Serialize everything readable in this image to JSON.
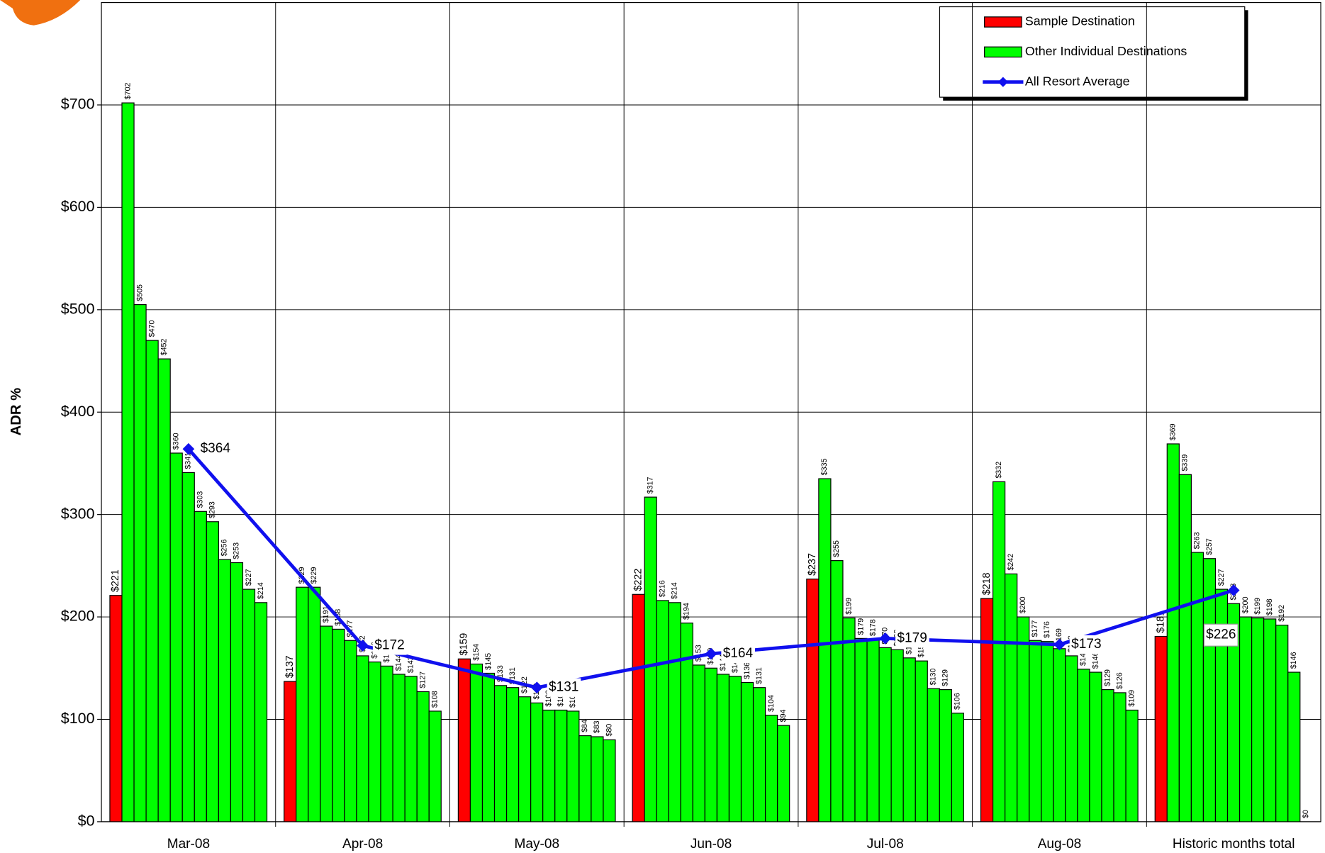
{
  "chart_data": {
    "type": "grouped-bar-line",
    "y_label": "ADR %",
    "categories": [
      "Mar-08",
      "Apr-08",
      "May-08",
      "Jun-08",
      "Jul-08",
      "Aug-08",
      "Historic months total"
    ],
    "ylim": [
      0,
      800
    ],
    "yticks": [
      {
        "value": 0,
        "label": "$0"
      },
      {
        "value": 100,
        "label": "$100"
      },
      {
        "value": 200,
        "label": "$200"
      },
      {
        "value": 300,
        "label": "$300"
      },
      {
        "value": 400,
        "label": "$400"
      },
      {
        "value": 500,
        "label": "$500"
      },
      {
        "value": 600,
        "label": "$600"
      },
      {
        "value": 700,
        "label": "$700"
      }
    ],
    "grid": true,
    "legend": "top-right",
    "series": [
      {
        "name": "Sample Destination",
        "color": "#ff0000",
        "values": [
          221,
          137,
          159,
          222,
          237,
          218,
          181
        ],
        "value_labels": [
          "$221",
          "$137",
          "$159",
          "$222",
          "$237",
          "$218",
          "$181"
        ]
      },
      {
        "name": "Other Individual Destinations",
        "color": "#00ff00",
        "values": [
          [
            702,
            505,
            470,
            452,
            360,
            341,
            303,
            293,
            256,
            253,
            227,
            214
          ],
          [
            229,
            229,
            191,
            188,
            177,
            162,
            156,
            152,
            144,
            142,
            127,
            108
          ],
          [
            154,
            145,
            133,
            131,
            122,
            116,
            109,
            109,
            108,
            84,
            83,
            80
          ],
          [
            317,
            216,
            214,
            194,
            153,
            150,
            144,
            142,
            136,
            131,
            104,
            94
          ],
          [
            335,
            255,
            199,
            179,
            178,
            170,
            168,
            160,
            157,
            130,
            129,
            106
          ],
          [
            332,
            242,
            200,
            177,
            176,
            169,
            162,
            149,
            146,
            129,
            126,
            109
          ],
          [
            369,
            339,
            263,
            257,
            227,
            213,
            200,
            199,
            198,
            192,
            146,
            0
          ]
        ],
        "value_labels": [
          [
            "$702",
            "$505",
            "$470",
            "$452",
            "$360",
            "$341",
            "$303",
            "$293",
            "$256",
            "$253",
            "$227",
            "$214"
          ],
          [
            "$229",
            "$229",
            "$191",
            "$188",
            "$177",
            "$162",
            "$156",
            "$152",
            "$144",
            "$142",
            "$127",
            "$108"
          ],
          [
            "$154",
            "$145",
            "$133",
            "$131",
            "$122",
            "$116",
            "$109",
            "$109",
            "$108",
            "$84",
            "$83",
            "$80"
          ],
          [
            "$317",
            "$216",
            "$214",
            "$194",
            "$153",
            "$150",
            "$144",
            "$142",
            "$136",
            "$131",
            "$104",
            "$94"
          ],
          [
            "$335",
            "$255",
            "$199",
            "$179",
            "$178",
            "$170",
            "$168",
            "$160",
            "$157",
            "$130",
            "$129",
            "$106"
          ],
          [
            "$332",
            "$242",
            "$200",
            "$177",
            "$176",
            "$169",
            "$162",
            "$149",
            "$146",
            "$129",
            "$126",
            "$109"
          ],
          [
            "$369",
            "$339",
            "$263",
            "$257",
            "$227",
            "$213",
            "$200",
            "$199",
            "$198",
            "$192",
            "$146",
            "$0"
          ]
        ]
      },
      {
        "name": "All Resort Average",
        "color": "#1010ee",
        "values": [
          364,
          172,
          131,
          164,
          179,
          173,
          226
        ],
        "value_labels": [
          "$364",
          "$172",
          "$131",
          "$164",
          "$179",
          "$173",
          "$226"
        ]
      }
    ]
  }
}
